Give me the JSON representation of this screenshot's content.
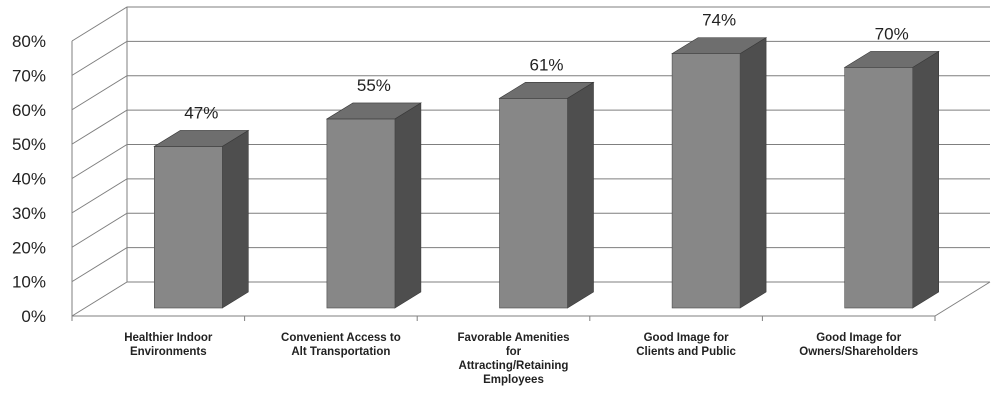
{
  "chart_data": {
    "type": "bar",
    "title": "",
    "xlabel": "",
    "ylabel": "",
    "categories": [
      [
        "Healthier Indoor",
        "Environments"
      ],
      [
        "Convenient Access to",
        "Alt Transportation"
      ],
      [
        "Favorable Amenities",
        "for",
        "Attracting/Retaining",
        "Employees"
      ],
      [
        "Good Image for",
        "Clients and Public"
      ],
      [
        "Good Image for",
        "Owners/Shareholders"
      ]
    ],
    "values": [
      47,
      55,
      61,
      74,
      70
    ],
    "data_labels": [
      "47%",
      "55%",
      "61%",
      "74%",
      "70%"
    ],
    "ylim": [
      0,
      80
    ],
    "yticks": [
      0,
      10,
      20,
      30,
      40,
      50,
      60,
      70,
      80
    ],
    "ytick_labels": [
      "0%",
      "10%",
      "20%",
      "30%",
      "40%",
      "50%",
      "60%",
      "70%",
      "80%"
    ],
    "grid": true,
    "legend": "none",
    "style": "3d-column",
    "colors": {
      "bar_front": "#878787",
      "bar_side": "#4e4e4e",
      "bar_top": "#6e6e6e",
      "grid": "#7f7f7f",
      "text": "#222222"
    }
  }
}
